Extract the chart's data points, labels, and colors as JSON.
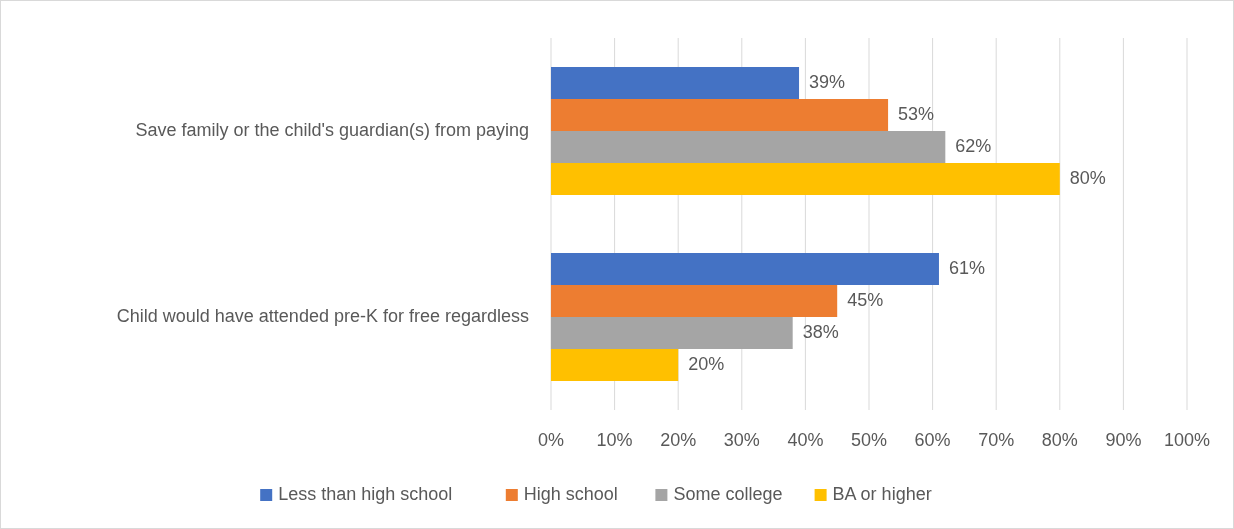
{
  "chart_data": {
    "type": "bar",
    "orientation": "horizontal",
    "categories": [
      "Save family or the child's guardian(s) from paying",
      "Child would have attended pre-K for free regardless"
    ],
    "series": [
      {
        "name": "Less than high school",
        "color": "#4472c4",
        "values": [
          39,
          61
        ],
        "value_labels": [
          "39%",
          "61%"
        ]
      },
      {
        "name": "High school",
        "color": "#ed7d31",
        "values": [
          53,
          45
        ],
        "value_labels": [
          "53%",
          "45%"
        ]
      },
      {
        "name": "Some college",
        "color": "#a5a5a5",
        "values": [
          62,
          38
        ],
        "value_labels": [
          "62%",
          "38%"
        ]
      },
      {
        "name": "BA or higher",
        "color": "#ffc000",
        "values": [
          80,
          20
        ],
        "value_labels": [
          "80%",
          "20%"
        ]
      }
    ],
    "xlim": [
      0,
      100
    ],
    "xticks": [
      {
        "value": 0,
        "label": "0%"
      },
      {
        "value": 10,
        "label": "10%"
      },
      {
        "value": 20,
        "label": "20%"
      },
      {
        "value": 30,
        "label": "30%"
      },
      {
        "value": 40,
        "label": "40%"
      },
      {
        "value": 50,
        "label": "50%"
      },
      {
        "value": 60,
        "label": "60%"
      },
      {
        "value": 70,
        "label": "70%"
      },
      {
        "value": 80,
        "label": "80%"
      },
      {
        "value": 90,
        "label": "90%"
      },
      {
        "value": 100,
        "label": "100%"
      }
    ],
    "grid": "x",
    "legend": "bottom"
  }
}
